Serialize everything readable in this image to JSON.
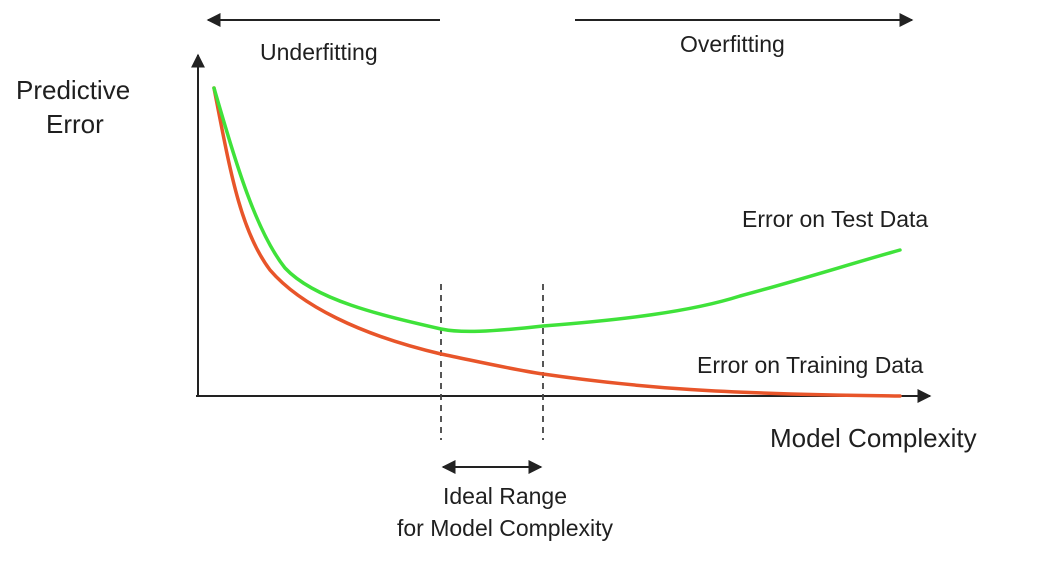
{
  "diagram": {
    "y_axis_label_line1": "Predictive",
    "y_axis_label_line2": "Error",
    "x_axis_label": "Model Complexity",
    "underfitting_label": "Underfitting",
    "overfitting_label": "Overfitting",
    "test_curve_label": "Error on Test Data",
    "training_curve_label": "Error on Training Data",
    "ideal_range_line1": "Ideal Range",
    "ideal_range_line2": "for Model Complexity",
    "colors": {
      "test_curve": "#3fe23a",
      "training_curve": "#e8552a",
      "axis": "#222222",
      "text": "#1f1f1f"
    }
  }
}
